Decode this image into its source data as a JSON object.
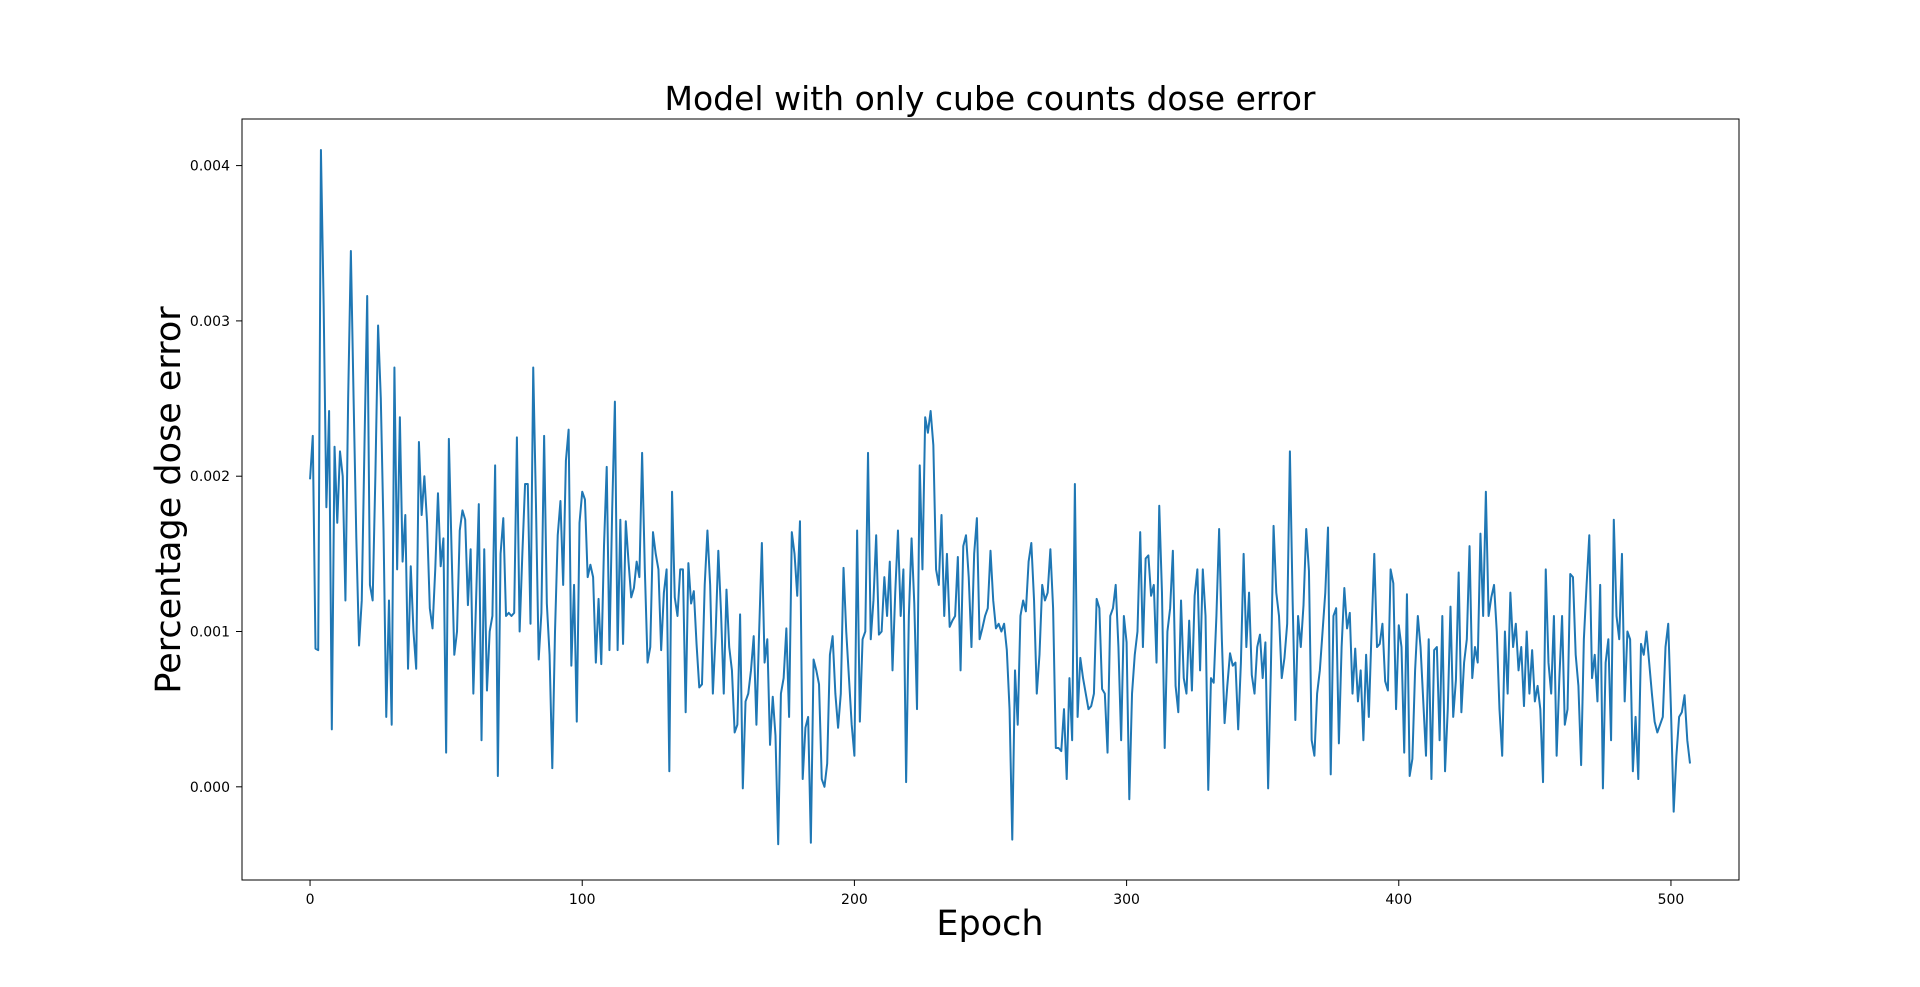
{
  "chart_data": {
    "type": "line",
    "title": "Model with only cube counts dose error",
    "xlabel": "Epoch",
    "ylabel": "Percentage dose error",
    "xlim": [
      -25,
      525
    ],
    "ylim": [
      -0.0006,
      0.0043
    ],
    "grid": false,
    "x_ticks": [
      0,
      100,
      200,
      300,
      400,
      500
    ],
    "x_tick_labels": [
      "0",
      "100",
      "200",
      "300",
      "400",
      "500"
    ],
    "y_ticks": [
      0.0,
      0.001,
      0.002,
      0.003,
      0.004
    ],
    "y_tick_labels": [
      "0.000",
      "0.001",
      "0.002",
      "0.003",
      "0.004"
    ],
    "series": [
      {
        "color": "#1f77b4",
        "x_start": 0,
        "x_step": 1,
        "values": [
          0.00198,
          0.00226,
          0.00089,
          0.00088,
          0.0041,
          0.0031,
          0.0018,
          0.00242,
          0.00037,
          0.00219,
          0.0017,
          0.00216,
          0.002,
          0.0012,
          0.0025,
          0.00345,
          0.0025,
          0.0016,
          0.00091,
          0.0012,
          0.0022,
          0.00316,
          0.0013,
          0.0012,
          0.002,
          0.00297,
          0.0025,
          0.00165,
          0.00045,
          0.0012,
          0.0004,
          0.0027,
          0.0014,
          0.00238,
          0.00145,
          0.00175,
          0.00076,
          0.00142,
          0.001,
          0.00076,
          0.00222,
          0.00175,
          0.002,
          0.0017,
          0.00115,
          0.00102,
          0.0014,
          0.00189,
          0.00142,
          0.0016,
          0.00022,
          0.00224,
          0.00152,
          0.00085,
          0.001,
          0.00165,
          0.00178,
          0.00172,
          0.00117,
          0.00153,
          0.0006,
          0.0012,
          0.00182,
          0.0003,
          0.00153,
          0.00062,
          0.001,
          0.0011,
          0.00207,
          7e-05,
          0.0015,
          0.00173,
          0.0011,
          0.00112,
          0.0011,
          0.00112,
          0.00225,
          0.001,
          0.0015,
          0.00195,
          0.00195,
          0.00105,
          0.0027,
          0.00182,
          0.00082,
          0.00112,
          0.00226,
          0.00118,
          0.00085,
          0.00012,
          0.001,
          0.00162,
          0.00184,
          0.0013,
          0.0021,
          0.0023,
          0.00078,
          0.0013,
          0.00042,
          0.0017,
          0.0019,
          0.00185,
          0.00135,
          0.00143,
          0.00135,
          0.0008,
          0.00121,
          0.00079,
          0.00155,
          0.00206,
          0.00088,
          0.00178,
          0.00248,
          0.00088,
          0.00172,
          0.00092,
          0.00171,
          0.00145,
          0.00122,
          0.00128,
          0.00145,
          0.00135,
          0.00215,
          0.0014,
          0.0008,
          0.0009,
          0.00164,
          0.0015,
          0.0014,
          0.00088,
          0.00125,
          0.0014,
          0.0001,
          0.0019,
          0.00122,
          0.0011,
          0.0014,
          0.0014,
          0.00048,
          0.00144,
          0.00118,
          0.00126,
          0.00092,
          0.00064,
          0.00066,
          0.0013,
          0.00165,
          0.0013,
          0.0006,
          0.00098,
          0.00152,
          0.00112,
          0.0006,
          0.00127,
          0.0009,
          0.00075,
          0.00035,
          0.0004,
          0.00111,
          -1e-05,
          0.00055,
          0.0006,
          0.00075,
          0.00097,
          0.0004,
          0.001,
          0.00157,
          0.0008,
          0.00095,
          0.00027,
          0.00058,
          0.00033,
          -0.00037,
          0.0006,
          0.0007,
          0.00102,
          0.00045,
          0.00164,
          0.0015,
          0.00123,
          0.00171,
          5e-05,
          0.00038,
          0.00045,
          -0.00036,
          0.00082,
          0.00075,
          0.00066,
          5e-05,
          0.0,
          0.00015,
          0.00085,
          0.00097,
          0.0006,
          0.00038,
          0.0006,
          0.00141,
          0.001,
          0.0007,
          0.0004,
          0.0002,
          0.00165,
          0.00042,
          0.00095,
          0.001,
          0.00215,
          0.00095,
          0.0012,
          0.00162,
          0.00098,
          0.001,
          0.00135,
          0.0011,
          0.00145,
          0.00075,
          0.00125,
          0.00165,
          0.0011,
          0.0014,
          3e-05,
          0.0011,
          0.0016,
          0.00118,
          0.0005,
          0.00207,
          0.0014,
          0.00238,
          0.00228,
          0.00242,
          0.0022,
          0.0014,
          0.0013,
          0.00175,
          0.0011,
          0.0015,
          0.00103,
          0.00107,
          0.0011,
          0.00148,
          0.00075,
          0.00155,
          0.00162,
          0.00135,
          0.0009,
          0.0015,
          0.00173,
          0.00095,
          0.00102,
          0.0011,
          0.00115,
          0.00152,
          0.0012,
          0.00102,
          0.00105,
          0.001,
          0.00105,
          0.00088,
          0.0005,
          -0.00034,
          0.00075,
          0.0004,
          0.0011,
          0.0012,
          0.00113,
          0.00145,
          0.00157,
          0.0012,
          0.0006,
          0.00085,
          0.0013,
          0.0012,
          0.00125,
          0.00153,
          0.00115,
          0.00025,
          0.00025,
          0.00023,
          0.0005,
          5e-05,
          0.0007,
          0.0003,
          0.00195,
          0.00045,
          0.00083,
          0.0007,
          0.0006,
          0.0005,
          0.00052,
          0.0006,
          0.00121,
          0.00115,
          0.00063,
          0.0006,
          0.00022,
          0.0011,
          0.00115,
          0.0013,
          0.0009,
          0.0003,
          0.0011,
          0.00093,
          -8e-05,
          0.0006,
          0.00085,
          0.001,
          0.00164,
          0.0009,
          0.00147,
          0.00149,
          0.00123,
          0.0013,
          0.0008,
          0.00181,
          0.00125,
          0.00025,
          0.001,
          0.00115,
          0.00152,
          0.00065,
          0.00048,
          0.0012,
          0.0007,
          0.0006,
          0.00107,
          0.00062,
          0.00123,
          0.0014,
          0.00075,
          0.0014,
          0.0011,
          -2e-05,
          0.0007,
          0.00067,
          0.0011,
          0.00166,
          0.00095,
          0.00041,
          0.00065,
          0.00086,
          0.00078,
          0.0008,
          0.00037,
          0.0008,
          0.0015,
          0.0009,
          0.00125,
          0.00072,
          0.0006,
          0.0009,
          0.00098,
          0.0007,
          0.00093,
          -1e-05,
          0.00075,
          0.00168,
          0.00125,
          0.0011,
          0.0007,
          0.00083,
          0.00105,
          0.00216,
          0.0012,
          0.00043,
          0.0011,
          0.0009,
          0.00117,
          0.00166,
          0.00139,
          0.0003,
          0.0002,
          0.0006,
          0.00075,
          0.001,
          0.00125,
          0.00167,
          8e-05,
          0.0011,
          0.00115,
          0.00028,
          0.0009,
          0.00128,
          0.00102,
          0.00112,
          0.0006,
          0.00089,
          0.00055,
          0.00075,
          0.0003,
          0.00085,
          0.00045,
          0.001,
          0.0015,
          0.0009,
          0.00092,
          0.00105,
          0.00068,
          0.00062,
          0.0014,
          0.00131,
          0.0005,
          0.00104,
          0.0009,
          0.00022,
          0.00124,
          7e-05,
          0.00018,
          0.00075,
          0.0011,
          0.0009,
          0.00055,
          0.0002,
          0.00095,
          5e-05,
          0.00088,
          0.0009,
          0.0003,
          0.0011,
          0.0001,
          0.0005,
          0.00116,
          0.00045,
          0.00069,
          0.00138,
          0.00048,
          0.0008,
          0.00095,
          0.00155,
          0.0007,
          0.0009,
          0.0008,
          0.00163,
          0.0011,
          0.0019,
          0.0011,
          0.00122,
          0.0013,
          0.001,
          0.0005,
          0.0002,
          0.001,
          0.0006,
          0.00125,
          0.0009,
          0.00105,
          0.00075,
          0.0009,
          0.00052,
          0.001,
          0.0006,
          0.00088,
          0.00055,
          0.00065,
          0.0005,
          3e-05,
          0.0014,
          0.0008,
          0.0006,
          0.0011,
          0.0002,
          0.0007,
          0.0011,
          0.0004,
          0.0005,
          0.00137,
          0.00135,
          0.00085,
          0.00065,
          0.00014,
          0.00095,
          0.0013,
          0.00162,
          0.0007,
          0.00085,
          0.00055,
          0.0013,
          -1e-05,
          0.0008,
          0.00095,
          0.0003,
          0.00172,
          0.0011,
          0.00095,
          0.0015,
          0.00055,
          0.001,
          0.00095,
          0.0001,
          0.00045,
          5e-05,
          0.00092,
          0.00085,
          0.001,
          0.0008,
          0.0006,
          0.00042,
          0.00035,
          0.0004,
          0.00045,
          0.0009,
          0.00105,
          0.0005,
          -0.00016,
          0.0002,
          0.00045,
          0.00048,
          0.00059,
          0.0003,
          0.00015
        ]
      }
    ]
  }
}
